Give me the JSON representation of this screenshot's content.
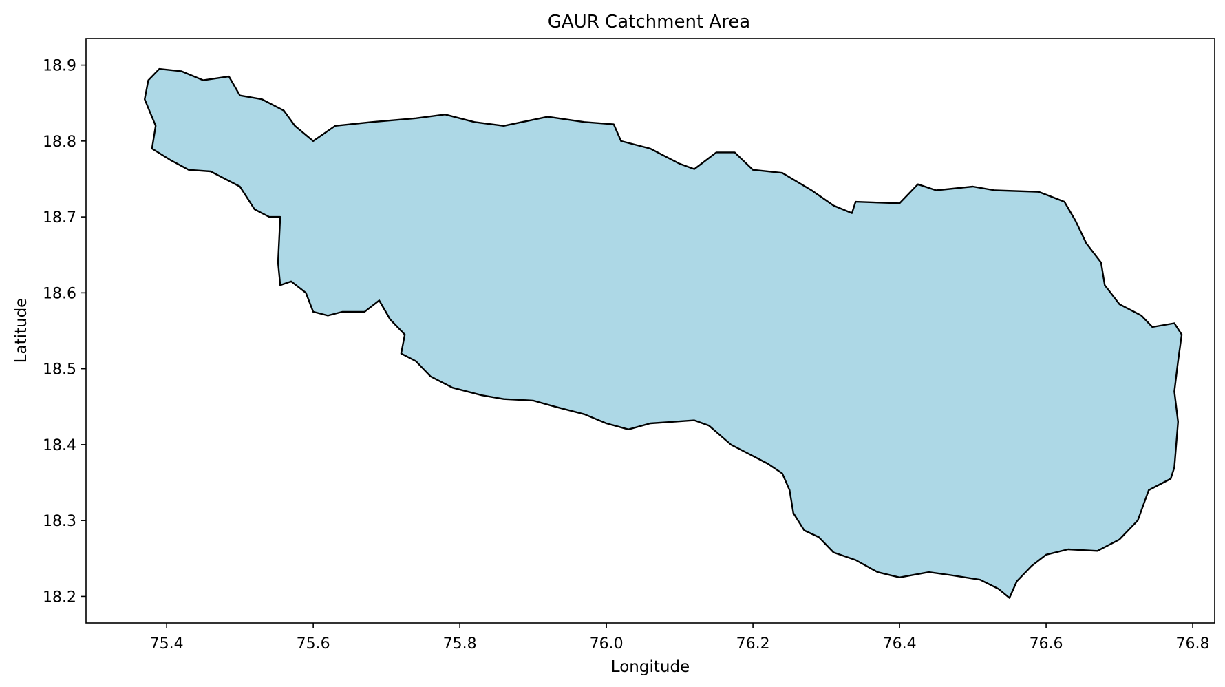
{
  "chart_data": {
    "type": "map",
    "title": "GAUR Catchment Area",
    "xlabel": "Longitude",
    "ylabel": "Latitude",
    "xlim": [
      75.29,
      76.83
    ],
    "ylim": [
      18.165,
      18.935
    ],
    "xticks": [
      75.4,
      75.6,
      75.8,
      76.0,
      76.2,
      76.4,
      76.6,
      76.8
    ],
    "xtick_labels": [
      "75.4",
      "75.6",
      "75.8",
      "76.0",
      "76.2",
      "76.4",
      "76.6",
      "76.8"
    ],
    "yticks": [
      18.2,
      18.3,
      18.4,
      18.5,
      18.6,
      18.7,
      18.8,
      18.9
    ],
    "ytick_labels": [
      "18.2",
      "18.3",
      "18.4",
      "18.5",
      "18.6",
      "18.7",
      "18.8",
      "18.9"
    ],
    "grid": false,
    "fill_color": "#add8e6",
    "edge_color": "#000000",
    "boundary": [
      [
        75.37,
        18.855
      ],
      [
        75.375,
        18.88
      ],
      [
        75.39,
        18.895
      ],
      [
        75.42,
        18.892
      ],
      [
        75.45,
        18.88
      ],
      [
        75.485,
        18.885
      ],
      [
        75.5,
        18.86
      ],
      [
        75.53,
        18.855
      ],
      [
        75.56,
        18.84
      ],
      [
        75.575,
        18.82
      ],
      [
        75.6,
        18.8
      ],
      [
        75.63,
        18.82
      ],
      [
        75.68,
        18.825
      ],
      [
        75.74,
        18.83
      ],
      [
        75.78,
        18.835
      ],
      [
        75.82,
        18.825
      ],
      [
        75.86,
        18.82
      ],
      [
        75.92,
        18.832
      ],
      [
        75.97,
        18.825
      ],
      [
        76.01,
        18.822
      ],
      [
        76.02,
        18.8
      ],
      [
        76.06,
        18.79
      ],
      [
        76.1,
        18.77
      ],
      [
        76.12,
        18.763
      ],
      [
        76.15,
        18.785
      ],
      [
        76.175,
        18.785
      ],
      [
        76.2,
        18.762
      ],
      [
        76.24,
        18.758
      ],
      [
        76.28,
        18.735
      ],
      [
        76.31,
        18.715
      ],
      [
        76.335,
        18.705
      ],
      [
        76.34,
        18.72
      ],
      [
        76.4,
        18.718
      ],
      [
        76.425,
        18.743
      ],
      [
        76.45,
        18.735
      ],
      [
        76.5,
        18.74
      ],
      [
        76.53,
        18.735
      ],
      [
        76.59,
        18.733
      ],
      [
        76.625,
        18.72
      ],
      [
        76.64,
        18.695
      ],
      [
        76.655,
        18.665
      ],
      [
        76.675,
        18.64
      ],
      [
        76.68,
        18.61
      ],
      [
        76.7,
        18.585
      ],
      [
        76.73,
        18.57
      ],
      [
        76.745,
        18.555
      ],
      [
        76.775,
        18.56
      ],
      [
        76.785,
        18.545
      ],
      [
        76.78,
        18.51
      ],
      [
        76.775,
        18.47
      ],
      [
        76.78,
        18.43
      ],
      [
        76.775,
        18.37
      ],
      [
        76.77,
        18.355
      ],
      [
        76.74,
        18.34
      ],
      [
        76.725,
        18.3
      ],
      [
        76.7,
        18.275
      ],
      [
        76.67,
        18.26
      ],
      [
        76.63,
        18.262
      ],
      [
        76.6,
        18.255
      ],
      [
        76.58,
        18.24
      ],
      [
        76.56,
        18.22
      ],
      [
        76.55,
        18.198
      ],
      [
        76.535,
        18.21
      ],
      [
        76.51,
        18.222
      ],
      [
        76.47,
        18.228
      ],
      [
        76.44,
        18.232
      ],
      [
        76.4,
        18.225
      ],
      [
        76.37,
        18.232
      ],
      [
        76.34,
        18.248
      ],
      [
        76.31,
        18.258
      ],
      [
        76.29,
        18.278
      ],
      [
        76.27,
        18.287
      ],
      [
        76.255,
        18.31
      ],
      [
        76.25,
        18.34
      ],
      [
        76.24,
        18.362
      ],
      [
        76.22,
        18.375
      ],
      [
        76.2,
        18.385
      ],
      [
        76.17,
        18.4
      ],
      [
        76.14,
        18.425
      ],
      [
        76.12,
        18.432
      ],
      [
        76.09,
        18.43
      ],
      [
        76.06,
        18.428
      ],
      [
        76.03,
        18.42
      ],
      [
        76.0,
        18.428
      ],
      [
        75.97,
        18.44
      ],
      [
        75.93,
        18.45
      ],
      [
        75.9,
        18.458
      ],
      [
        75.86,
        18.46
      ],
      [
        75.83,
        18.465
      ],
      [
        75.79,
        18.475
      ],
      [
        75.76,
        18.49
      ],
      [
        75.74,
        18.51
      ],
      [
        75.72,
        18.52
      ],
      [
        75.725,
        18.545
      ],
      [
        75.705,
        18.565
      ],
      [
        75.69,
        18.59
      ],
      [
        75.67,
        18.575
      ],
      [
        75.64,
        18.575
      ],
      [
        75.62,
        18.57
      ],
      [
        75.6,
        18.575
      ],
      [
        75.59,
        18.6
      ],
      [
        75.57,
        18.615
      ],
      [
        75.555,
        18.61
      ],
      [
        75.552,
        18.64
      ],
      [
        75.555,
        18.7
      ],
      [
        75.54,
        18.7
      ],
      [
        75.52,
        18.71
      ],
      [
        75.5,
        18.74
      ],
      [
        75.46,
        18.76
      ],
      [
        75.43,
        18.762
      ],
      [
        75.405,
        18.775
      ],
      [
        75.38,
        18.79
      ],
      [
        75.385,
        18.82
      ],
      [
        75.37,
        18.855
      ]
    ]
  }
}
